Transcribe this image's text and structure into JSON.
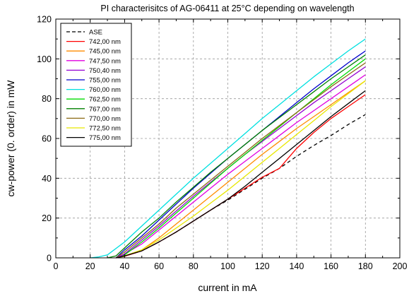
{
  "chart_data": {
    "type": "line",
    "title": "PI characterisitcs of AG-06411 at 25°C depending on wavelength",
    "xlabel": "current in mA",
    "ylabel": "cw-power (0. order) in mW",
    "xlim": [
      0,
      200
    ],
    "ylim": [
      0,
      120
    ],
    "xticks": [
      "0",
      "20",
      "40",
      "60",
      "80",
      "100",
      "120",
      "140",
      "160",
      "180",
      "200"
    ],
    "yticks": [
      "0",
      "20",
      "40",
      "60",
      "80",
      "100",
      "120"
    ],
    "grid": true,
    "grid_style": "dashed",
    "legend_position": "top-left",
    "series": [
      {
        "name": "ASE",
        "color": "#000000",
        "dash": true,
        "points": [
          [
            35,
            0
          ],
          [
            40,
            0.8
          ],
          [
            50,
            3.5
          ],
          [
            60,
            8
          ],
          [
            70,
            13
          ],
          [
            80,
            18.5
          ],
          [
            90,
            24
          ],
          [
            100,
            29
          ],
          [
            110,
            34.5
          ],
          [
            120,
            40
          ],
          [
            130,
            45
          ],
          [
            140,
            51
          ],
          [
            150,
            56.5
          ],
          [
            160,
            61.5
          ],
          [
            170,
            67
          ],
          [
            180,
            72
          ]
        ]
      },
      {
        "name": "742,00 nm",
        "color": "#ff0000",
        "points": [
          [
            35,
            0
          ],
          [
            40,
            0.8
          ],
          [
            50,
            3.5
          ],
          [
            60,
            8
          ],
          [
            70,
            13
          ],
          [
            80,
            18.5
          ],
          [
            90,
            24
          ],
          [
            100,
            29.5
          ],
          [
            110,
            35
          ],
          [
            120,
            40.5
          ],
          [
            130,
            45
          ],
          [
            135,
            50
          ],
          [
            140,
            55
          ],
          [
            150,
            63
          ],
          [
            160,
            70
          ],
          [
            170,
            76
          ],
          [
            180,
            82
          ]
        ]
      },
      {
        "name": "745,00 nm",
        "color": "#ff8c00",
        "points": [
          [
            35,
            0
          ],
          [
            40,
            1
          ],
          [
            50,
            4
          ],
          [
            60,
            10
          ],
          [
            70,
            17
          ],
          [
            80,
            24
          ],
          [
            90,
            31
          ],
          [
            100,
            38
          ],
          [
            110,
            45
          ],
          [
            120,
            52
          ],
          [
            130,
            58.5
          ],
          [
            140,
            65
          ],
          [
            150,
            71
          ],
          [
            160,
            77
          ],
          [
            170,
            83
          ],
          [
            180,
            89
          ]
        ]
      },
      {
        "name": "747,50 nm",
        "color": "#e000e0",
        "points": [
          [
            35,
            0
          ],
          [
            40,
            2
          ],
          [
            50,
            7
          ],
          [
            60,
            14
          ],
          [
            70,
            21
          ],
          [
            80,
            28
          ],
          [
            90,
            35
          ],
          [
            100,
            42
          ],
          [
            110,
            48.5
          ],
          [
            120,
            55
          ],
          [
            130,
            61.5
          ],
          [
            140,
            68
          ],
          [
            150,
            74
          ],
          [
            160,
            80
          ],
          [
            170,
            86
          ],
          [
            180,
            92
          ]
        ]
      },
      {
        "name": "750,40 nm",
        "color": "#9400d3",
        "points": [
          [
            36,
            0
          ],
          [
            40,
            2
          ],
          [
            50,
            9
          ],
          [
            60,
            16
          ],
          [
            70,
            23.5
          ],
          [
            80,
            31
          ],
          [
            90,
            38
          ],
          [
            100,
            45
          ],
          [
            110,
            52
          ],
          [
            120,
            58.5
          ],
          [
            130,
            65
          ],
          [
            140,
            71.5
          ],
          [
            150,
            78
          ],
          [
            160,
            84
          ],
          [
            170,
            90
          ],
          [
            180,
            96
          ]
        ]
      },
      {
        "name": "755,00 nm",
        "color": "#0000cc",
        "points": [
          [
            35,
            0
          ],
          [
            40,
            4
          ],
          [
            50,
            11
          ],
          [
            60,
            19
          ],
          [
            70,
            27
          ],
          [
            80,
            35
          ],
          [
            90,
            42.5
          ],
          [
            100,
            50
          ],
          [
            110,
            57
          ],
          [
            120,
            64
          ],
          [
            130,
            71
          ],
          [
            140,
            78
          ],
          [
            150,
            85
          ],
          [
            160,
            91.5
          ],
          [
            170,
            98
          ],
          [
            180,
            104
          ]
        ]
      },
      {
        "name": "760,00 nm",
        "color": "#00e0e0",
        "points": [
          [
            20,
            0
          ],
          [
            25,
            0.5
          ],
          [
            30,
            1.5
          ],
          [
            40,
            8
          ],
          [
            50,
            16
          ],
          [
            60,
            24
          ],
          [
            70,
            32
          ],
          [
            80,
            40
          ],
          [
            90,
            47.5
          ],
          [
            100,
            55
          ],
          [
            110,
            62.5
          ],
          [
            120,
            70
          ],
          [
            130,
            77
          ],
          [
            140,
            84
          ],
          [
            150,
            91
          ],
          [
            160,
            97.5
          ],
          [
            170,
            104
          ],
          [
            180,
            110
          ]
        ]
      },
      {
        "name": "762,50 nm",
        "color": "#00dd00",
        "points": [
          [
            37,
            0
          ],
          [
            40,
            1.5
          ],
          [
            50,
            8
          ],
          [
            60,
            15
          ],
          [
            70,
            22.5
          ],
          [
            80,
            30
          ],
          [
            90,
            37.5
          ],
          [
            100,
            45
          ],
          [
            110,
            52
          ],
          [
            120,
            59
          ],
          [
            130,
            66
          ],
          [
            140,
            73
          ],
          [
            150,
            80
          ],
          [
            160,
            87
          ],
          [
            170,
            93.5
          ],
          [
            180,
            100
          ]
        ]
      },
      {
        "name": "767,00 nm",
        "color": "#008000",
        "points": [
          [
            30,
            0
          ],
          [
            35,
            1
          ],
          [
            40,
            5
          ],
          [
            50,
            13
          ],
          [
            60,
            20
          ],
          [
            70,
            28
          ],
          [
            80,
            35.5
          ],
          [
            90,
            43
          ],
          [
            100,
            50
          ],
          [
            110,
            57
          ],
          [
            120,
            64
          ],
          [
            130,
            70.5
          ],
          [
            140,
            77
          ],
          [
            150,
            83.5
          ],
          [
            160,
            90
          ],
          [
            170,
            96
          ],
          [
            180,
            102
          ]
        ]
      },
      {
        "name": "770,00 nm",
        "color": "#8b6914",
        "points": [
          [
            35,
            0
          ],
          [
            40,
            3
          ],
          [
            50,
            10
          ],
          [
            60,
            17
          ],
          [
            70,
            25
          ],
          [
            80,
            32
          ],
          [
            90,
            39
          ],
          [
            100,
            46
          ],
          [
            110,
            53
          ],
          [
            120,
            60
          ],
          [
            130,
            66.5
          ],
          [
            140,
            73
          ],
          [
            150,
            79.5
          ],
          [
            160,
            86
          ],
          [
            170,
            92
          ],
          [
            180,
            98
          ]
        ]
      },
      {
        "name": "772,50 nm",
        "color": "#e8e800",
        "points": [
          [
            36,
            0
          ],
          [
            40,
            1
          ],
          [
            50,
            4
          ],
          [
            60,
            9
          ],
          [
            70,
            15
          ],
          [
            80,
            21
          ],
          [
            90,
            27.5
          ],
          [
            100,
            34
          ],
          [
            110,
            41
          ],
          [
            120,
            48
          ],
          [
            130,
            55
          ],
          [
            140,
            62
          ],
          [
            150,
            69
          ],
          [
            160,
            76
          ],
          [
            170,
            82.5
          ],
          [
            180,
            89
          ]
        ]
      },
      {
        "name": "775,00 nm",
        "color": "#000000",
        "points": [
          [
            35,
            0
          ],
          [
            40,
            1
          ],
          [
            50,
            3.5
          ],
          [
            60,
            8
          ],
          [
            70,
            13
          ],
          [
            80,
            18.5
          ],
          [
            90,
            24
          ],
          [
            100,
            29.5
          ],
          [
            110,
            36
          ],
          [
            120,
            43
          ],
          [
            130,
            50
          ],
          [
            140,
            57
          ],
          [
            150,
            64
          ],
          [
            160,
            71
          ],
          [
            170,
            77.5
          ],
          [
            180,
            84
          ]
        ]
      }
    ]
  }
}
